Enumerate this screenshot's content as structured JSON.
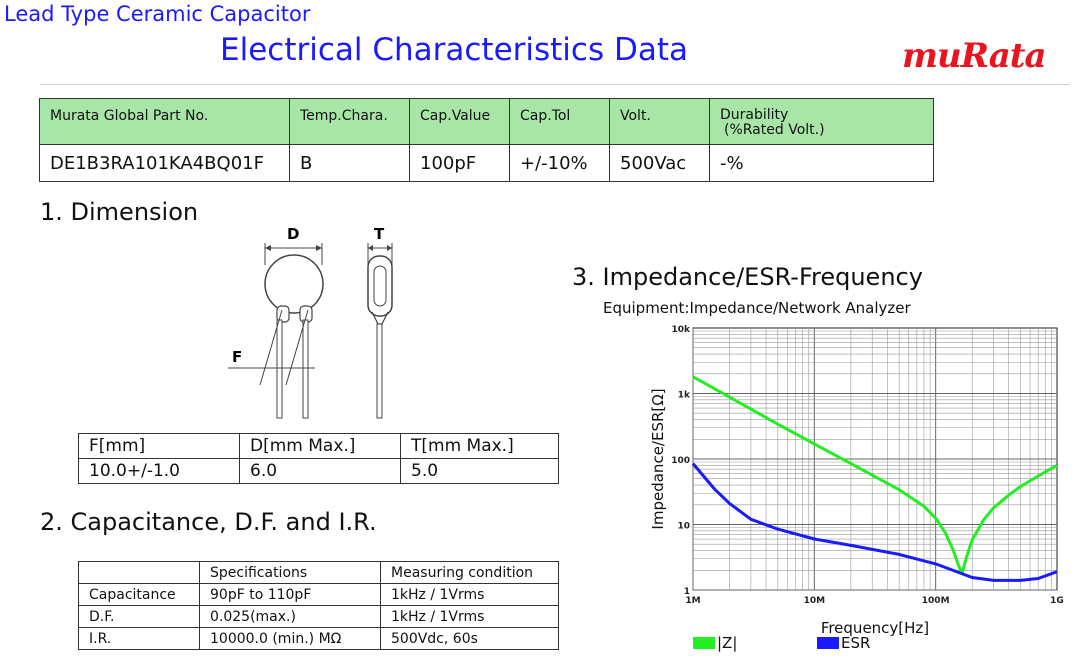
{
  "header": {
    "subtitle": "Lead Type Ceramic Capacitor",
    "title": "Electrical Characteristics Data",
    "logo": "muRata",
    "logo_color": "#e8141e",
    "title_color": "#1a1aff"
  },
  "part_table": {
    "headers": [
      "Murata Global Part No.",
      "Temp.Chara.",
      "Cap.Value",
      "Cap.Tol",
      "Volt.",
      "Durability",
      "(%Rated Volt.)"
    ],
    "values": [
      "DE1B3RA101KA4BQ01F",
      "B",
      "100pF",
      "+/-10%",
      "500Vac",
      "-%"
    ],
    "header_color": "#a8e6a8"
  },
  "dimension": {
    "heading": "1. Dimension",
    "drawing_labels": {
      "d": "D",
      "t": "T",
      "f": "F"
    },
    "headers": [
      "F[mm]",
      "D[mm Max.]",
      "T[mm Max.]"
    ],
    "values": [
      "10.0+/-1.0",
      "6.0",
      "5.0"
    ]
  },
  "capacitance": {
    "heading": "2. Capacitance, D.F. and I.R.",
    "headers": [
      "",
      "Specifications",
      "Measuring condition"
    ],
    "rows": [
      [
        "Capacitance",
        "90pF to 110pF",
        "1kHz / 1Vrms"
      ],
      [
        "D.F.",
        "0.025(max.)",
        "1kHz / 1Vrms"
      ],
      [
        "I.R.",
        "10000.0 (min.) MΩ",
        "500Vdc, 60s"
      ]
    ]
  },
  "impedance": {
    "heading": "3. Impedance/ESR-Frequency",
    "equipment": "Equipment:Impedance/Network Analyzer"
  },
  "chart_data": {
    "type": "line",
    "title": "",
    "xlabel": "Frequency[Hz]",
    "ylabel": "Impedance/ESR[Ω]",
    "xscale": "log",
    "yscale": "log",
    "xlim": [
      1000000,
      1000000000
    ],
    "ylim": [
      1,
      10000
    ],
    "x_tick_labels": [
      "1M",
      "10M",
      "100M",
      "1G"
    ],
    "y_tick_labels": [
      "1",
      "10",
      "100",
      "1k",
      "10k"
    ],
    "grid": true,
    "legend_position": "bottom",
    "series": [
      {
        "name": "|Z|",
        "color": "#22ee22",
        "x": [
          1000000,
          2000000,
          5000000,
          10000000,
          20000000,
          50000000,
          80000000,
          100000000,
          120000000,
          140000000,
          155000000,
          165000000,
          180000000,
          200000000,
          250000000,
          300000000,
          400000000,
          500000000,
          700000000,
          1000000000
        ],
        "y": [
          1800,
          880,
          340,
          170,
          85,
          34,
          19,
          12.5,
          7.5,
          4,
          2.3,
          1.8,
          3.2,
          5.8,
          12,
          18,
          28,
          38,
          55,
          80
        ]
      },
      {
        "name": "ESR",
        "color": "#1a1aff",
        "x": [
          1000000,
          1500000,
          2000000,
          3000000,
          5000000,
          10000000,
          20000000,
          50000000,
          100000000,
          200000000,
          300000000,
          500000000,
          700000000,
          1000000000
        ],
        "y": [
          85,
          35,
          21,
          12,
          8.5,
          6,
          4.8,
          3.5,
          2.5,
          1.55,
          1.4,
          1.4,
          1.5,
          1.9
        ]
      }
    ]
  }
}
